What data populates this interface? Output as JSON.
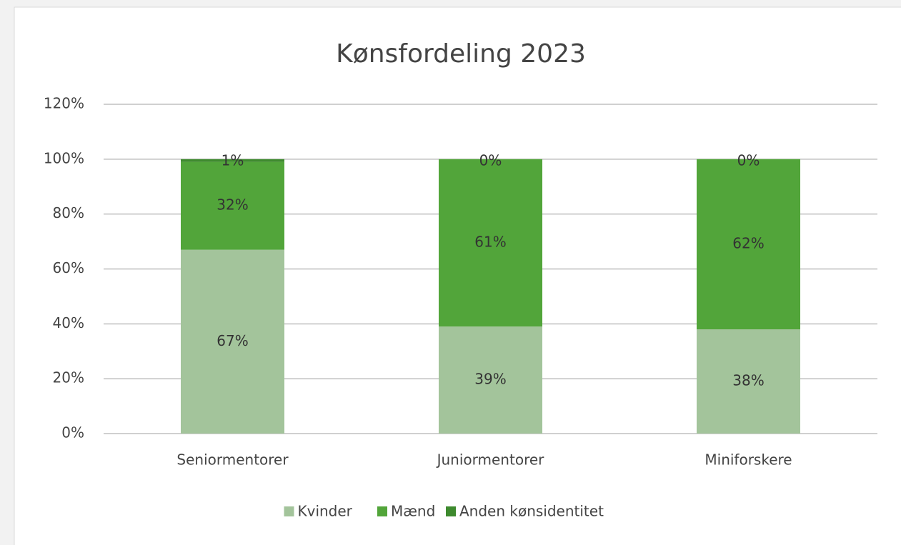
{
  "chart_data": {
    "type": "stacked_bar",
    "title": "Kønsfordeling 2023",
    "categories": [
      "Seniormentorer",
      "Juniormentorer",
      "Miniforskere"
    ],
    "series": [
      {
        "name": "Kvinder",
        "color": "#a3c49b",
        "values": [
          67,
          39,
          38
        ],
        "value_labels": [
          "67%",
          "39%",
          "38%"
        ]
      },
      {
        "name": "Mænd",
        "color": "#52a53a",
        "values": [
          32,
          61,
          62
        ],
        "value_labels": [
          "32%",
          "61%",
          "62%"
        ]
      },
      {
        "name": "Anden kønsidentitet",
        "color": "#3e8a2e",
        "values": [
          1,
          0,
          0
        ],
        "value_labels": [
          "1%",
          "0%",
          "0%"
        ]
      }
    ],
    "ylim": [
      0,
      120
    ],
    "yticks": [
      {
        "value": 0,
        "label": "0%"
      },
      {
        "value": 20,
        "label": "20%"
      },
      {
        "value": 40,
        "label": "40%"
      },
      {
        "value": 60,
        "label": "60%"
      },
      {
        "value": 80,
        "label": "80%"
      },
      {
        "value": 100,
        "label": "100%"
      },
      {
        "value": 120,
        "label": "120%"
      }
    ],
    "grid": true,
    "legend": "bottom"
  }
}
